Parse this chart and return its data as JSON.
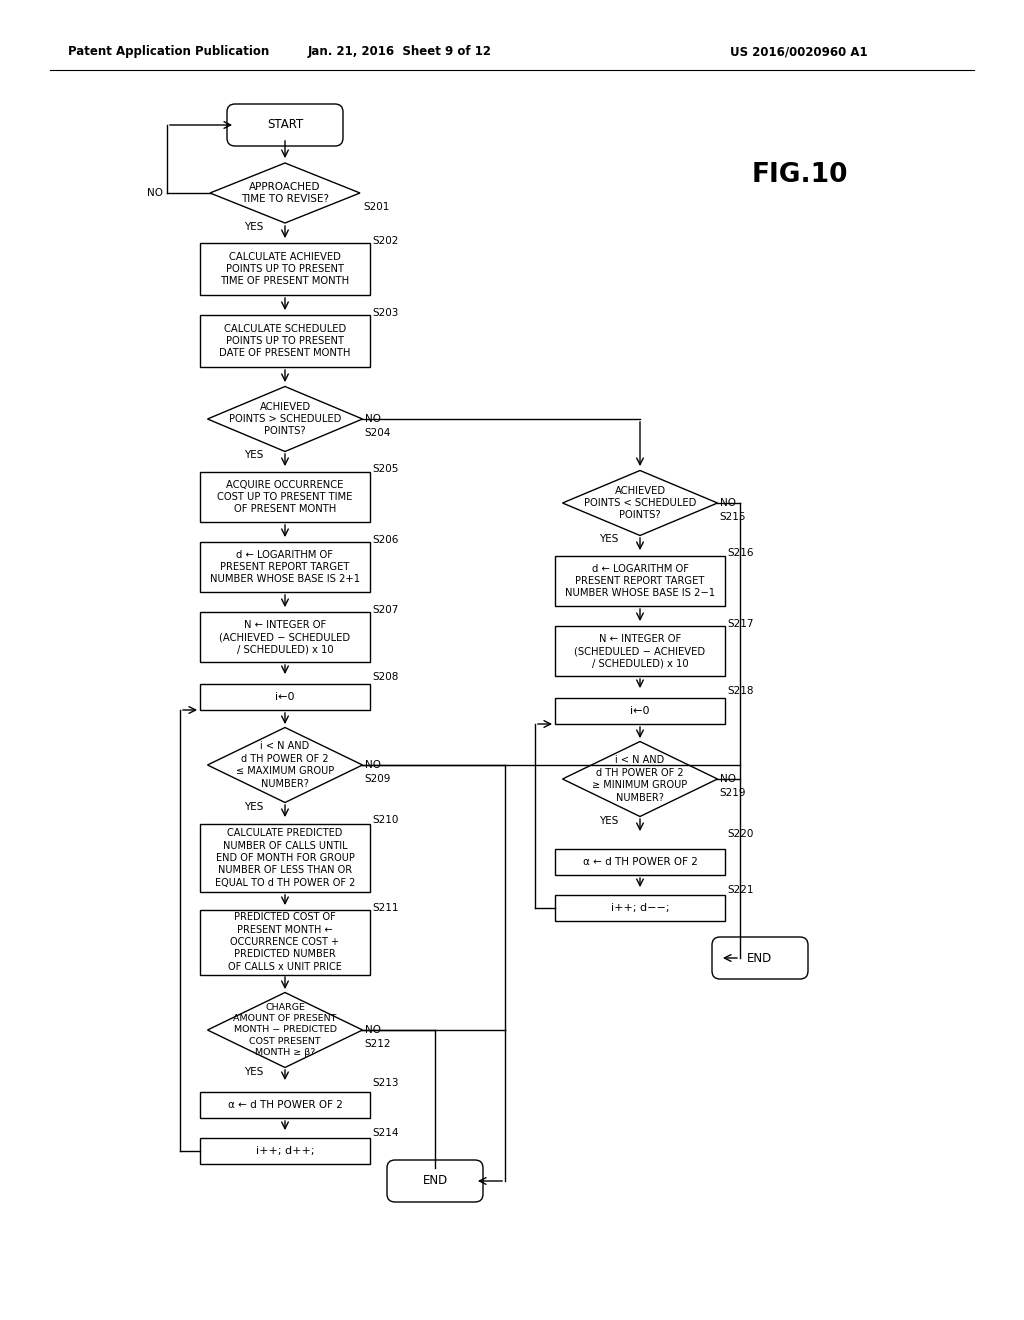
{
  "header_left": "Patent Application Publication",
  "header_mid": "Jan. 21, 2016  Sheet 9 of 12",
  "header_right": "US 2016/0020960 A1",
  "fig_label": "FIG.10",
  "bg_color": "#ffffff",
  "line_color": "#000000",
  "text_color": "#000000"
}
